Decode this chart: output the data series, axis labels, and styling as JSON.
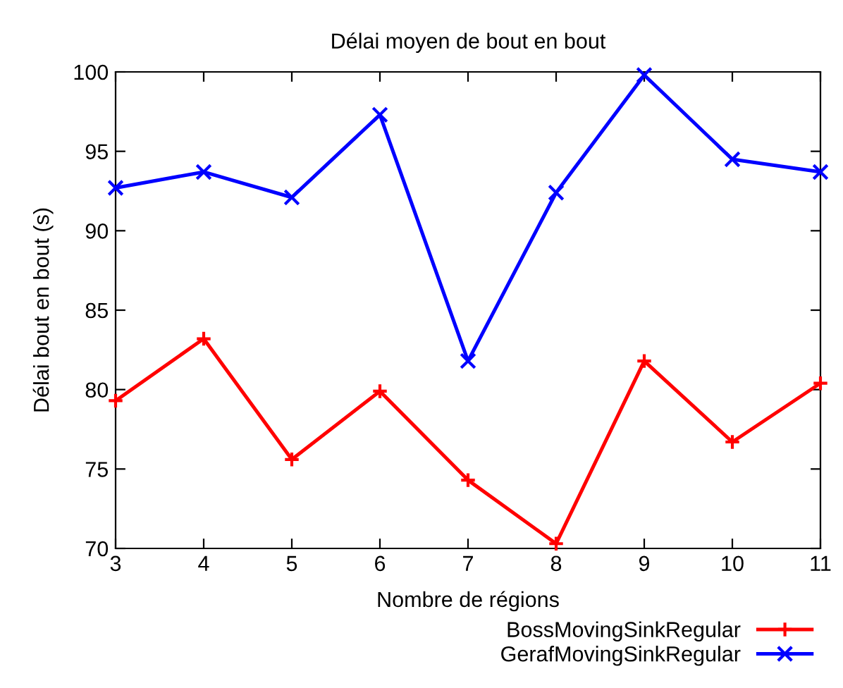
{
  "chart_data": {
    "type": "line",
    "title": "Délai moyen de bout en bout",
    "xlabel": "Nombre de régions",
    "ylabel": "Délai bout en bout (s)",
    "x": [
      3,
      4,
      5,
      6,
      7,
      8,
      9,
      10,
      11
    ],
    "series": [
      {
        "name": "BossMovingSinkRegular",
        "color": "#ff0000",
        "marker": "plus",
        "values": [
          79.3,
          83.2,
          75.6,
          79.9,
          74.3,
          70.3,
          81.8,
          76.7,
          80.4
        ]
      },
      {
        "name": "GerafMovingSinkRegular",
        "color": "#0000ff",
        "marker": "cross",
        "values": [
          92.7,
          93.7,
          92.1,
          97.3,
          81.8,
          92.4,
          99.8,
          94.5,
          93.7
        ]
      }
    ],
    "xlim": [
      3,
      11
    ],
    "xticks": [
      3,
      4,
      5,
      6,
      7,
      8,
      9,
      10,
      11
    ],
    "ylim": [
      70,
      100
    ],
    "yticks": [
      70,
      75,
      80,
      85,
      90,
      95,
      100
    ],
    "grid": false,
    "legend": "bottom right",
    "line_style": "solid"
  }
}
